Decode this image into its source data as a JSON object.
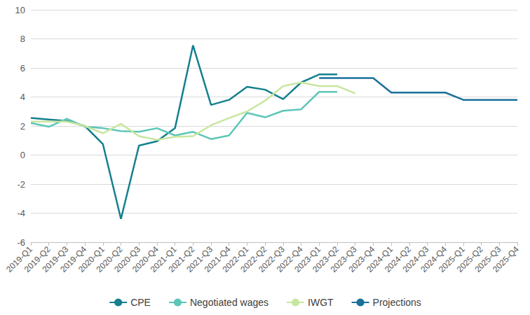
{
  "chart_data": {
    "type": "line",
    "categories": [
      "2019-Q1",
      "2019-Q2",
      "2019-Q3",
      "2019-Q4",
      "2020-Q1",
      "2020-Q2",
      "2020-Q3",
      "2020-Q4",
      "2021-Q1",
      "2021-Q2",
      "2021-Q3",
      "2021-Q4",
      "2022-Q1",
      "2022-Q2",
      "2022-Q3",
      "2022-Q4",
      "2023-Q1",
      "2023-Q2",
      "2023-Q3",
      "2023-Q4",
      "2024-Q1",
      "2024-Q2",
      "2024-Q3",
      "2024-Q4",
      "2025-Q1",
      "2025-Q2",
      "2025-Q3",
      "2025-Q4"
    ],
    "series": [
      {
        "name": "CPE",
        "color": "#14808e",
        "values": [
          2.55,
          2.45,
          2.35,
          2.0,
          0.75,
          -4.4,
          0.65,
          0.95,
          1.85,
          7.55,
          3.45,
          3.8,
          4.7,
          4.5,
          3.85,
          5.0,
          5.55,
          5.55,
          null,
          null,
          null,
          null,
          null,
          null,
          null,
          null,
          null,
          null
        ]
      },
      {
        "name": "Negotiated wages",
        "color": "#5cc6b8",
        "values": [
          2.2,
          1.95,
          2.5,
          1.95,
          1.85,
          1.65,
          1.6,
          1.85,
          1.35,
          1.6,
          1.1,
          1.35,
          2.9,
          2.6,
          3.05,
          3.15,
          4.35,
          4.35,
          null,
          null,
          null,
          null,
          null,
          null,
          null,
          null,
          null,
          null
        ]
      },
      {
        "name": "IWGT",
        "color": "#c8e6a0",
        "values": [
          2.3,
          2.3,
          2.3,
          2.0,
          1.5,
          2.15,
          1.3,
          1.05,
          1.25,
          1.3,
          2.05,
          2.55,
          3.0,
          3.75,
          4.75,
          5.0,
          4.75,
          4.75,
          4.25,
          null,
          null,
          null,
          null,
          null,
          null,
          null,
          null,
          null
        ]
      },
      {
        "name": "Projections",
        "color": "#1a6f9a",
        "values": [
          null,
          null,
          null,
          null,
          null,
          null,
          null,
          null,
          null,
          null,
          null,
          null,
          null,
          null,
          null,
          null,
          5.3,
          5.3,
          5.3,
          5.3,
          4.3,
          4.3,
          4.3,
          4.3,
          3.8,
          3.8,
          3.8,
          3.8
        ]
      }
    ],
    "ylim": [
      -6,
      10
    ],
    "yticks": [
      -6,
      -4,
      -2,
      0,
      2,
      4,
      6,
      8,
      10
    ],
    "grid": true,
    "legend": "bottom"
  }
}
